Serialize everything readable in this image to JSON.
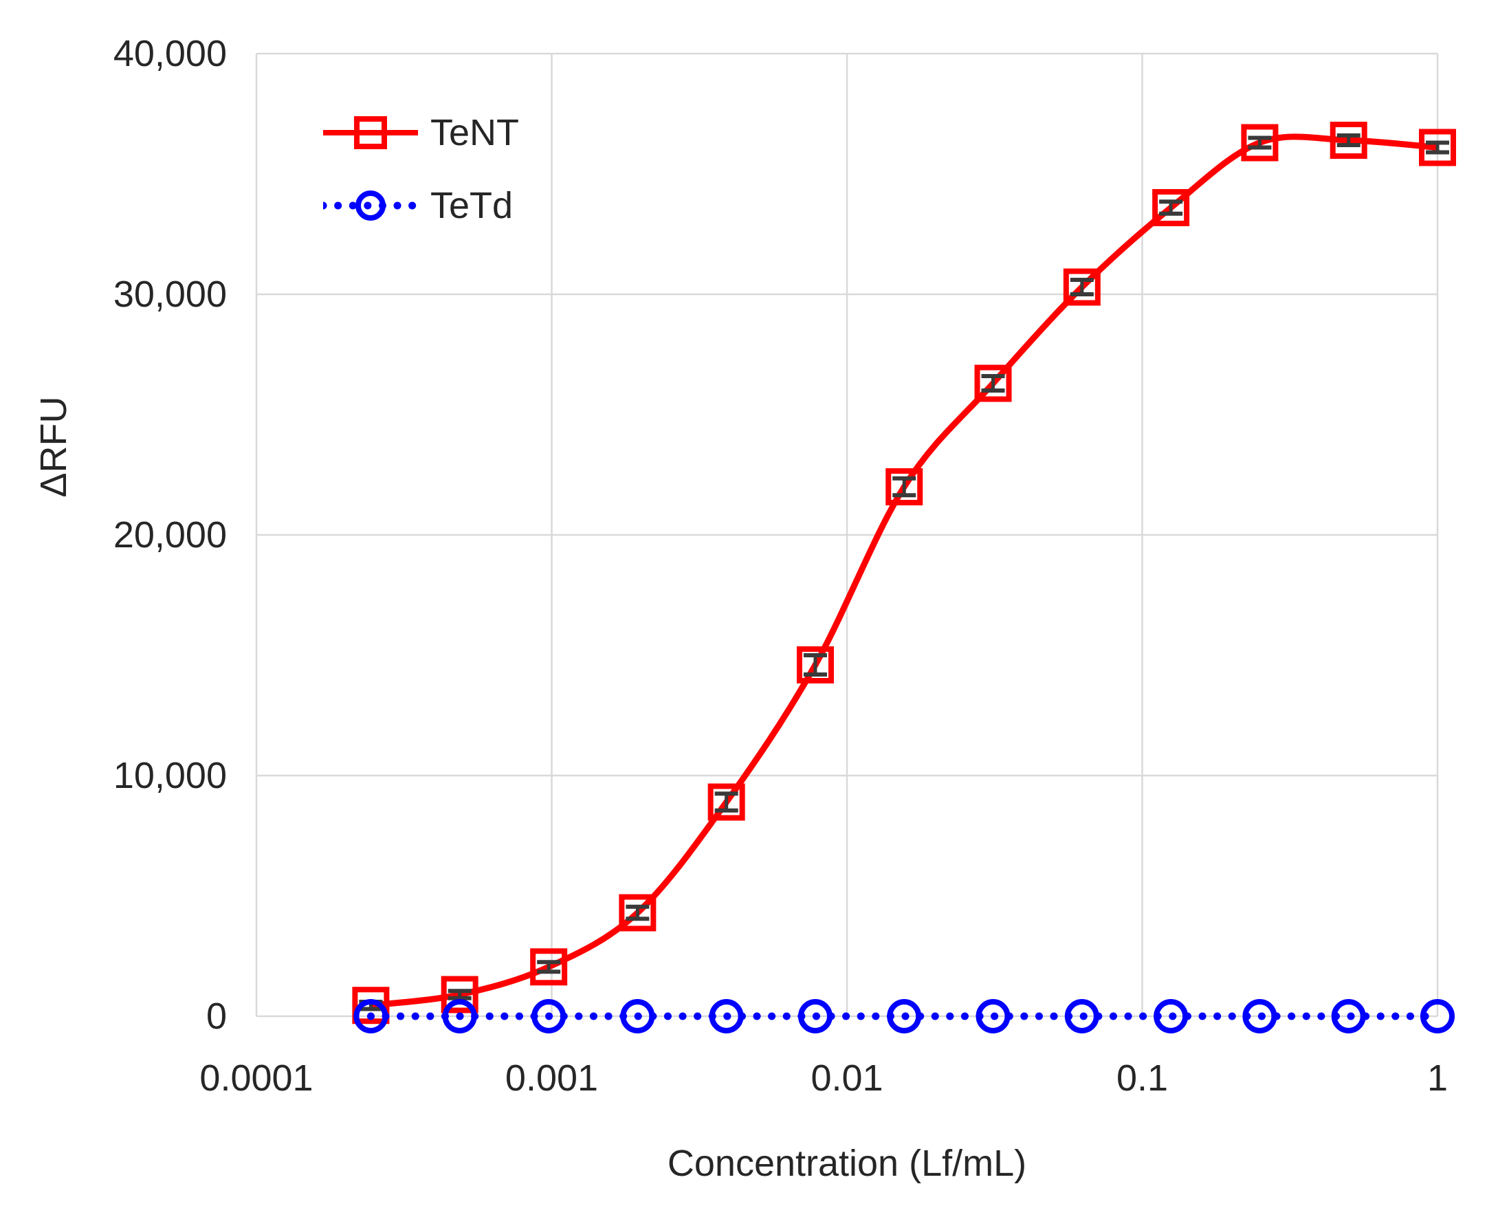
{
  "chart_data": {
    "type": "line",
    "title": "",
    "xlabel": "Concentration (Lf/mL)",
    "ylabel": "ΔRFU",
    "x_axis": {
      "scale": "log10",
      "min": 0.0001,
      "max": 1,
      "tick_values": [
        0.0001,
        0.001,
        0.01,
        0.1,
        1
      ],
      "tick_labels": [
        "0.0001",
        "0.001",
        "0.01",
        "0.1",
        "1"
      ]
    },
    "y_axis": {
      "min": 0,
      "max": 40000,
      "tick_step": 10000,
      "tick_values": [
        0,
        10000,
        20000,
        30000,
        40000
      ],
      "tick_labels": [
        "0",
        "10,000",
        "20,000",
        "30,000",
        "40,000"
      ]
    },
    "grid": {
      "shown": true,
      "color": "#D9D9D9"
    },
    "legend": {
      "position": "top-left-inside"
    },
    "x": [
      0.000244,
      0.000488,
      0.000977,
      0.001953,
      0.003906,
      0.007813,
      0.015625,
      0.03125,
      0.0625,
      0.125,
      0.25,
      0.5,
      1
    ],
    "series": [
      {
        "name": "TeNT",
        "color": "#FF0000",
        "marker": "square",
        "line_style": "solid",
        "smooth": true,
        "values": [
          450,
          900,
          2050,
          4300,
          8900,
          14600,
          22000,
          26300,
          30300,
          33600,
          36300,
          36400,
          36100
        ],
        "errors": [
          150,
          150,
          200,
          250,
          350,
          400,
          350,
          300,
          300,
          250,
          200,
          200,
          200
        ],
        "error_bar_color": "#3a3a3a"
      },
      {
        "name": "TeTd",
        "color": "#0000FF",
        "marker": "circle",
        "line_style": "dotted",
        "smooth": false,
        "values": [
          0,
          0,
          0,
          0,
          0,
          0,
          0,
          0,
          0,
          0,
          0,
          0,
          0
        ],
        "errors": [
          0,
          0,
          0,
          0,
          0,
          0,
          0,
          0,
          0,
          0,
          0,
          0,
          0
        ],
        "error_bar_color": "#3a3a3a"
      }
    ]
  }
}
